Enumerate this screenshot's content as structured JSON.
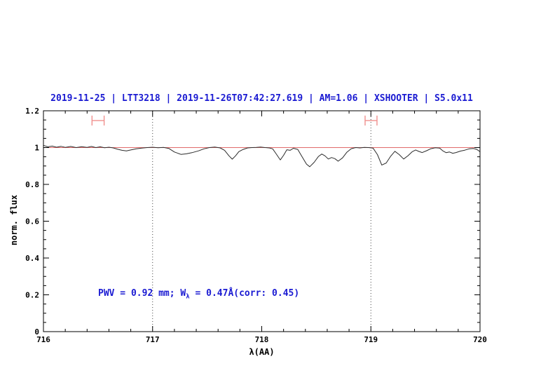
{
  "title": {
    "text": "2019-11-25 | LTT3218 | 2019-11-26T07:42:27.619 | AM=1.06 | XSHOOTER | S5.0x11"
  },
  "annotation": {
    "prefix": "PWV = 0.92 mm; W",
    "sub": "λ",
    "suffix": " = 0.47Å(corr: 0.45)"
  },
  "colors": {
    "accent_blue": "#1a1ad2",
    "continuum_red": "#e06a6a",
    "marker_red": "#f0908e",
    "spectrum": "#2b2b2b",
    "frame": "#000000",
    "dotted_line": "#444444"
  },
  "chart_data": {
    "type": "line",
    "title": "2019-11-25 | LTT3218 | 2019-11-26T07:42:27.619 | AM=1.06 | XSHOOTER | S5.0x11",
    "xlabel": "λ(AA)",
    "ylabel": "norm. flux",
    "xlim": [
      716,
      720
    ],
    "ylim": [
      0,
      1.2
    ],
    "grid": "off",
    "xticks": {
      "major": [
        716,
        717,
        718,
        719,
        720
      ],
      "labels": [
        "716",
        "717",
        "718",
        "719",
        "720"
      ],
      "minor_step": 0.2
    },
    "yticks": {
      "major": [
        0,
        0.2,
        0.4,
        0.6,
        0.8,
        1.0,
        1.2
      ],
      "labels": [
        "0",
        "0.2",
        "0.4",
        "0.6",
        "0.8",
        "1",
        "1.2"
      ],
      "minor_step": 0.05
    },
    "vlines": [
      717,
      719
    ],
    "continuum_level": 1.0,
    "markers": [
      {
        "x_start": 716.445,
        "x_end": 716.556,
        "y": 1.147,
        "cap_half_height": 0.027
      },
      {
        "x_start": 718.947,
        "x_end": 719.056,
        "y": 1.147,
        "cap_half_height": 0.027
      }
    ],
    "series": [
      {
        "name": "normalized spectrum",
        "points": [
          [
            716.0,
            1.012
          ],
          [
            716.04,
            1.004
          ],
          [
            716.08,
            1.008
          ],
          [
            716.12,
            1.002
          ],
          [
            716.16,
            1.007
          ],
          [
            716.2,
            1.001
          ],
          [
            716.25,
            1.006
          ],
          [
            716.3,
            1.0
          ],
          [
            716.35,
            1.005
          ],
          [
            716.4,
            1.001
          ],
          [
            716.44,
            1.006
          ],
          [
            716.48,
            1.0
          ],
          [
            716.52,
            1.004
          ],
          [
            716.56,
            0.999
          ],
          [
            716.6,
            1.002
          ],
          [
            716.64,
            0.998
          ],
          [
            716.68,
            0.991
          ],
          [
            716.72,
            0.985
          ],
          [
            716.76,
            0.982
          ],
          [
            716.8,
            0.987
          ],
          [
            716.85,
            0.993
          ],
          [
            716.9,
            0.997
          ],
          [
            716.95,
            1.0
          ],
          [
            717.0,
            1.002
          ],
          [
            717.05,
            0.999
          ],
          [
            717.1,
            1.001
          ],
          [
            717.15,
            0.995
          ],
          [
            717.2,
            0.976
          ],
          [
            717.26,
            0.963
          ],
          [
            717.31,
            0.966
          ],
          [
            717.36,
            0.972
          ],
          [
            717.42,
            0.982
          ],
          [
            717.47,
            0.993
          ],
          [
            717.52,
            1.0
          ],
          [
            717.57,
            1.003
          ],
          [
            717.62,
            0.998
          ],
          [
            717.66,
            0.985
          ],
          [
            717.7,
            0.955
          ],
          [
            717.73,
            0.937
          ],
          [
            717.76,
            0.955
          ],
          [
            717.79,
            0.978
          ],
          [
            717.83,
            0.99
          ],
          [
            717.87,
            0.998
          ],
          [
            717.91,
            1.0
          ],
          [
            717.95,
            1.001
          ],
          [
            717.99,
            1.003
          ],
          [
            718.03,
            1.0
          ],
          [
            718.07,
            0.998
          ],
          [
            718.1,
            0.993
          ],
          [
            718.13,
            0.968
          ],
          [
            718.17,
            0.933
          ],
          [
            718.2,
            0.958
          ],
          [
            718.23,
            0.988
          ],
          [
            718.26,
            0.985
          ],
          [
            718.29,
            0.996
          ],
          [
            718.33,
            0.99
          ],
          [
            718.37,
            0.95
          ],
          [
            718.41,
            0.91
          ],
          [
            718.44,
            0.896
          ],
          [
            718.48,
            0.92
          ],
          [
            718.52,
            0.952
          ],
          [
            718.55,
            0.965
          ],
          [
            718.58,
            0.955
          ],
          [
            718.61,
            0.938
          ],
          [
            718.64,
            0.946
          ],
          [
            718.67,
            0.94
          ],
          [
            718.7,
            0.926
          ],
          [
            718.74,
            0.944
          ],
          [
            718.78,
            0.975
          ],
          [
            718.82,
            0.994
          ],
          [
            718.86,
            1.0
          ],
          [
            718.9,
            0.998
          ],
          [
            718.94,
            1.001
          ],
          [
            718.98,
            1.0
          ],
          [
            719.02,
            0.997
          ],
          [
            719.06,
            0.962
          ],
          [
            719.1,
            0.905
          ],
          [
            719.14,
            0.916
          ],
          [
            719.18,
            0.952
          ],
          [
            719.22,
            0.98
          ],
          [
            719.26,
            0.962
          ],
          [
            719.3,
            0.938
          ],
          [
            719.34,
            0.956
          ],
          [
            719.38,
            0.978
          ],
          [
            719.41,
            0.987
          ],
          [
            719.44,
            0.979
          ],
          [
            719.47,
            0.973
          ],
          [
            719.51,
            0.983
          ],
          [
            719.55,
            0.994
          ],
          [
            719.59,
            0.999
          ],
          [
            719.63,
            0.997
          ],
          [
            719.66,
            0.982
          ],
          [
            719.69,
            0.972
          ],
          [
            719.72,
            0.976
          ],
          [
            719.75,
            0.969
          ],
          [
            719.78,
            0.973
          ],
          [
            719.82,
            0.981
          ],
          [
            719.86,
            0.986
          ],
          [
            719.9,
            0.993
          ],
          [
            719.94,
            0.995
          ],
          [
            719.97,
            0.99
          ],
          [
            720.0,
            0.978
          ]
        ]
      }
    ]
  }
}
